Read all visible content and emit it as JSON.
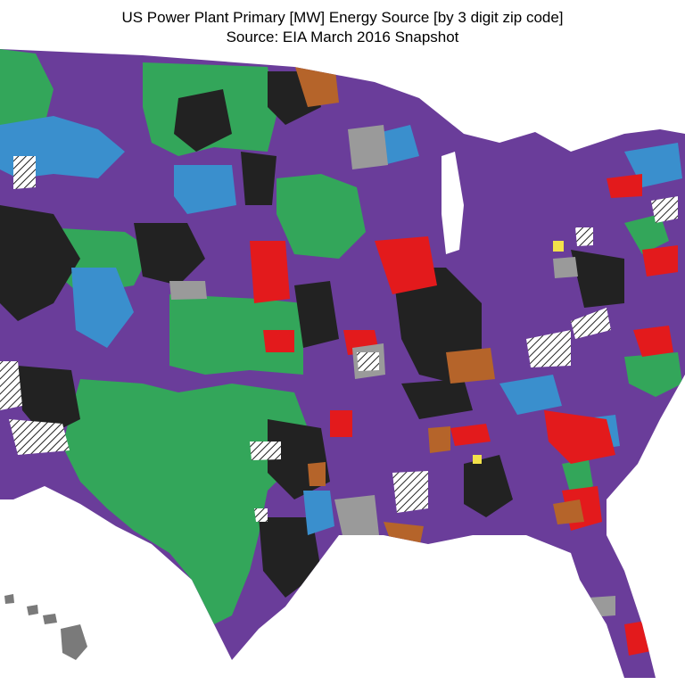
{
  "map": {
    "title": "US Power Plant Primary [MW] Energy Source [by 3 digit zip code]",
    "subtitle": "Source:  EIA March 2016 Snapshot",
    "region": "United States (contiguous states plus Hawaii)",
    "unit": "3 digit zip code",
    "energy_sources": [
      {
        "key": "natural-gas",
        "color": "#6a3d9a"
      },
      {
        "key": "coal",
        "color": "#222222"
      },
      {
        "key": "wind",
        "color": "#33a65a"
      },
      {
        "key": "hydro",
        "color": "#3a8fcd"
      },
      {
        "key": "nuclear",
        "color": "#e31a1c"
      },
      {
        "key": "oil",
        "color": "#b5642a"
      },
      {
        "key": "other",
        "color": "#9a9a9a"
      },
      {
        "key": "solar",
        "color": "#f2e14a"
      },
      {
        "key": "no-data",
        "color": "hatched"
      }
    ],
    "background": "#ffffff"
  }
}
